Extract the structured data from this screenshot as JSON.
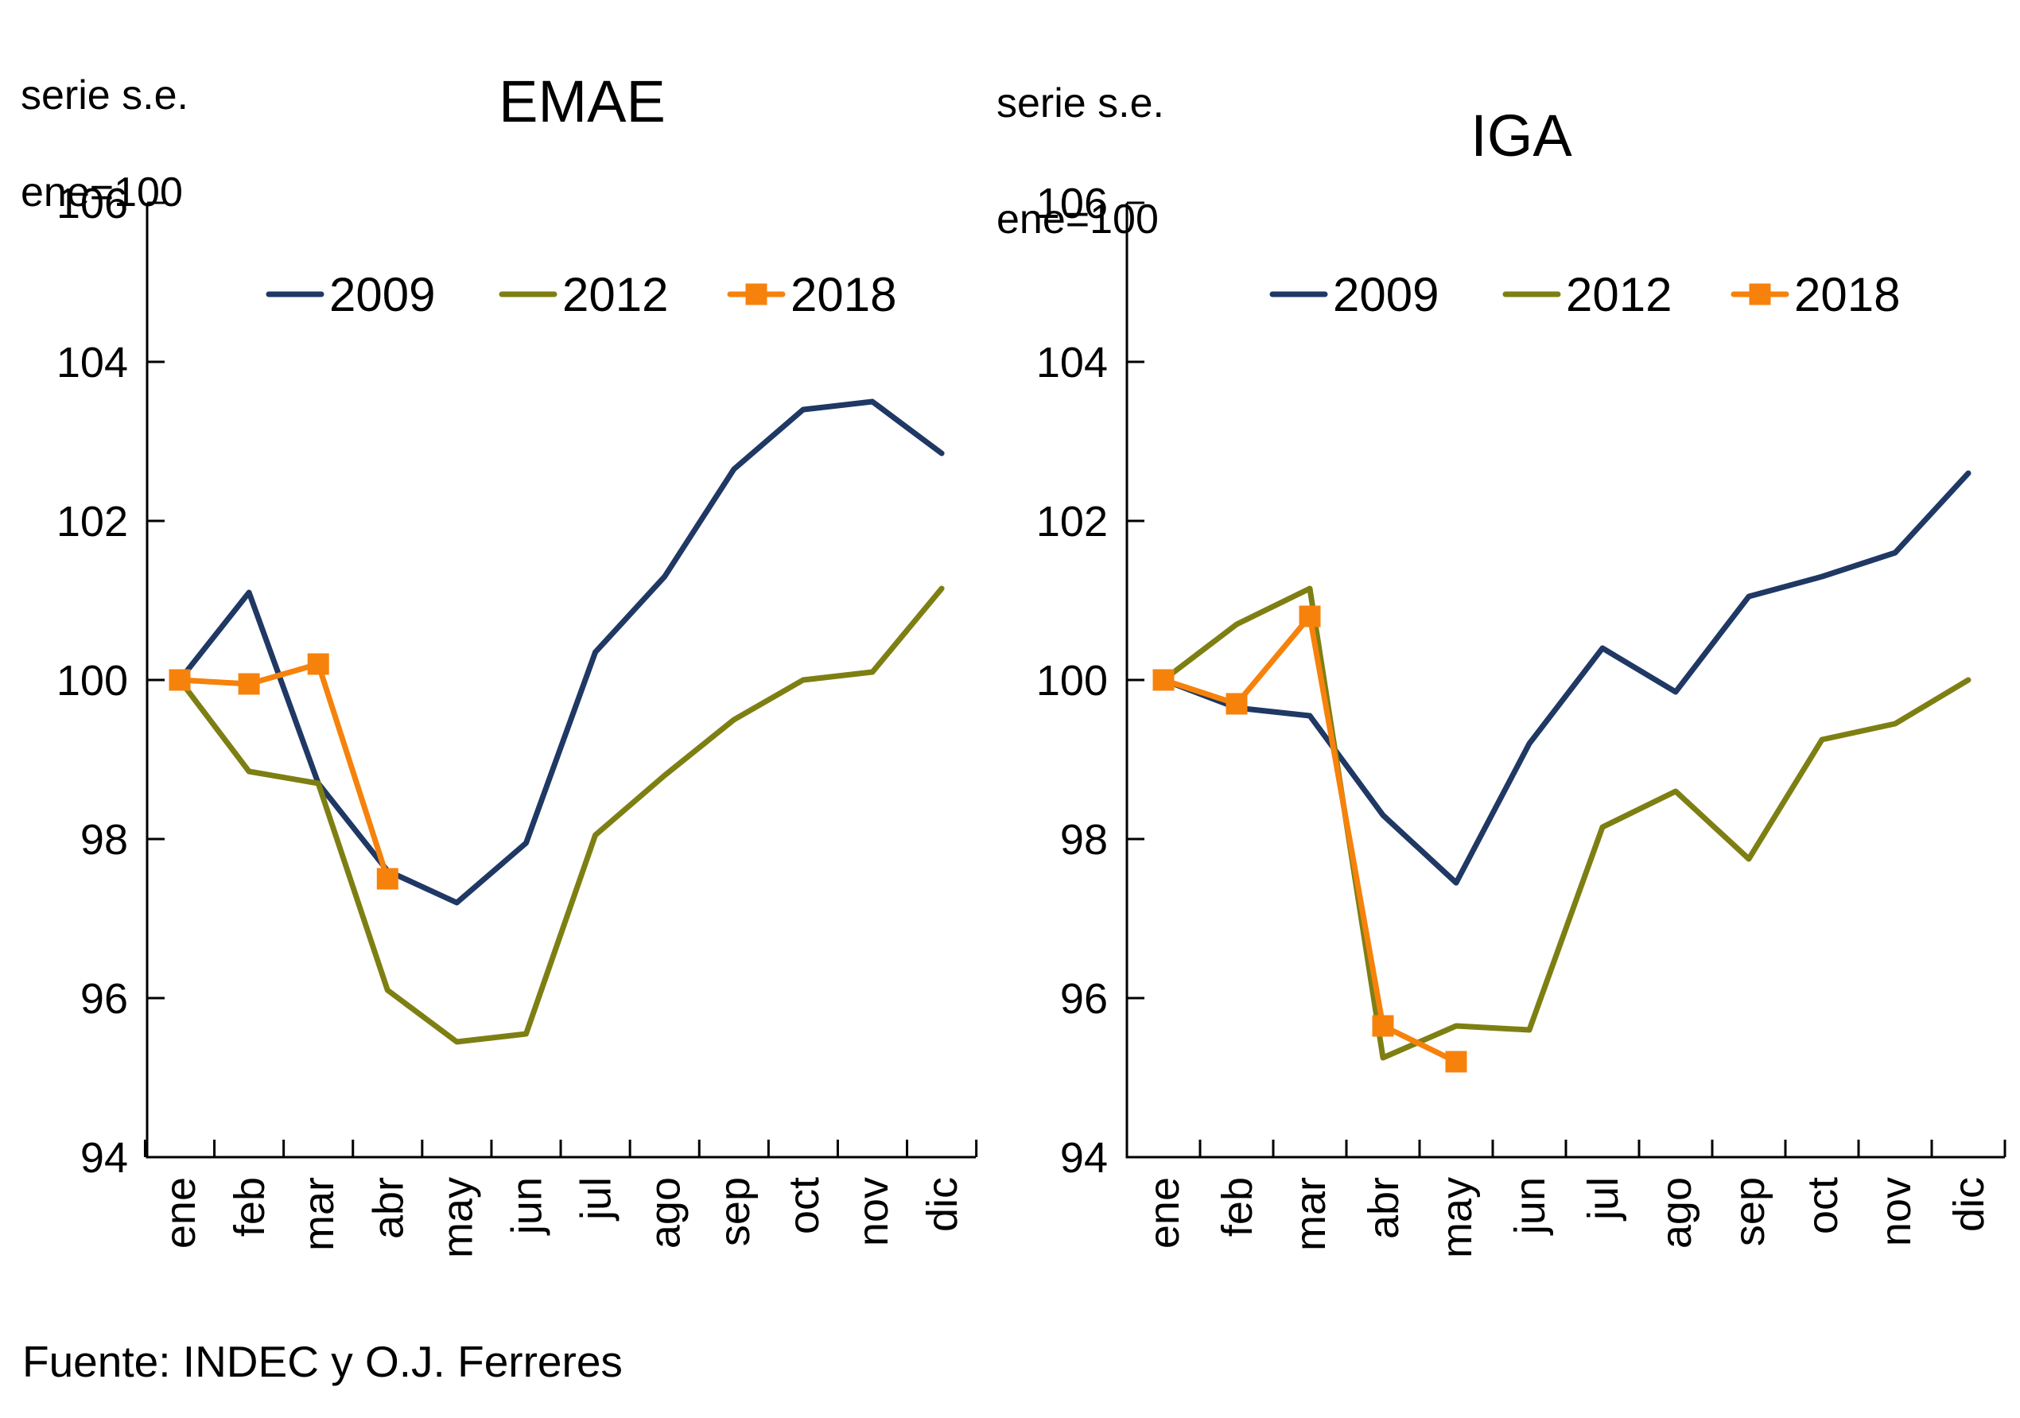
{
  "page": {
    "source_note": "Fuente: INDEC y O.J. Ferreres"
  },
  "colors": {
    "series_2009": "#1F3864",
    "series_2012": "#7E7F13",
    "series_2018": "#F6820C",
    "axis": "#000000"
  },
  "chart_data": [
    {
      "type": "line",
      "title": "EMAE",
      "note_line1": "serie s.e.",
      "note_line2": "ene=100",
      "categories": [
        "ene",
        "feb",
        "mar",
        "abr",
        "may",
        "jun",
        "jul",
        "ago",
        "sep",
        "oct",
        "nov",
        "dic"
      ],
      "ylim": [
        94,
        106
      ],
      "yticks": [
        106,
        104,
        102,
        100,
        98,
        96,
        94
      ],
      "grid": false,
      "legend_position": "top",
      "legend": [
        "2009",
        "2012",
        "2018"
      ],
      "series": [
        {
          "name": "2009",
          "color": "#1F3864",
          "marker": "none",
          "values": [
            100,
            101.1,
            98.7,
            97.6,
            97.2,
            97.95,
            100.35,
            101.3,
            102.65,
            103.4,
            103.5,
            102.85
          ]
        },
        {
          "name": "2012",
          "color": "#7E7F13",
          "marker": "none",
          "values": [
            100,
            98.85,
            98.7,
            96.1,
            95.45,
            95.55,
            98.05,
            98.8,
            99.5,
            100.0,
            100.1,
            101.15
          ]
        },
        {
          "name": "2018",
          "color": "#F6820C",
          "marker": "square",
          "values": [
            100,
            99.95,
            100.2,
            97.5
          ]
        }
      ]
    },
    {
      "type": "line",
      "title": "IGA",
      "note_line1": "serie s.e.",
      "note_line2": "ene=100",
      "categories": [
        "ene",
        "feb",
        "mar",
        "abr",
        "may",
        "jun",
        "jul",
        "ago",
        "sep",
        "oct",
        "nov",
        "dic"
      ],
      "ylim": [
        94,
        106
      ],
      "yticks": [
        106,
        104,
        102,
        100,
        98,
        96,
        94
      ],
      "grid": false,
      "legend_position": "top",
      "legend": [
        "2009",
        "2012",
        "2018"
      ],
      "series": [
        {
          "name": "2009",
          "color": "#1F3864",
          "marker": "none",
          "values": [
            100,
            99.65,
            99.55,
            98.3,
            97.45,
            99.2,
            100.4,
            99.85,
            101.05,
            101.3,
            101.6,
            102.6
          ]
        },
        {
          "name": "2012",
          "color": "#7E7F13",
          "marker": "none",
          "values": [
            100,
            100.7,
            101.15,
            95.25,
            95.65,
            95.6,
            98.15,
            98.6,
            97.75,
            99.25,
            99.45,
            100.0
          ]
        },
        {
          "name": "2018",
          "color": "#F6820C",
          "marker": "square",
          "values": [
            100,
            99.7,
            100.8,
            95.65,
            95.2
          ]
        }
      ]
    }
  ]
}
